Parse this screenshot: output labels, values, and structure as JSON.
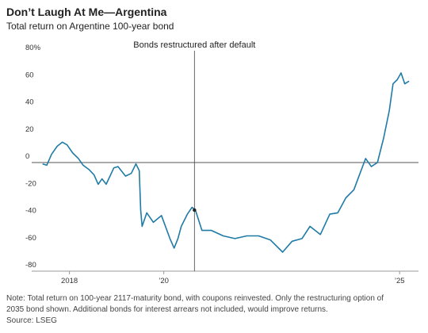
{
  "chart_data": {
    "type": "line",
    "title": "Don’t Laugh At Me—Argentina",
    "subtitle": "Total return on Argentine 100-year bond",
    "annotation": {
      "text": "Bonds restructured after default",
      "x": 2020.65
    },
    "note": [
      "Note: Total return on 100-year 2117-maturity bond, with coupons reinvested. Only the restructuring option of",
      "2035 bond shown. Additional bonds for interest arrears not included, would improve returns."
    ],
    "source": "Source: LSEG",
    "xlim": [
      2017.2,
      2025.4
    ],
    "xticks": [
      {
        "value": 2018,
        "label": "2018"
      },
      {
        "value": 2020,
        "label": "’20"
      },
      {
        "value": 2025,
        "label": "’25"
      }
    ],
    "ylim": [
      -80,
      80
    ],
    "yticks": [
      {
        "value": 80,
        "label": "80%"
      },
      60,
      40,
      20,
      0,
      -20,
      -40,
      -60,
      -80
    ],
    "series": [
      {
        "name": "Total return",
        "color": "#1f7ba6",
        "x": [
          2017.43,
          2017.52,
          2017.62,
          2017.74,
          2017.85,
          2017.95,
          2018.07,
          2018.19,
          2018.29,
          2018.41,
          2018.52,
          2018.61,
          2018.69,
          2018.78,
          2018.94,
          2019.03,
          2019.19,
          2019.31,
          2019.41,
          2019.48,
          2019.51,
          2019.54,
          2019.64,
          2019.78,
          2019.95,
          2020.13,
          2020.22,
          2020.3,
          2020.37,
          2020.5,
          2020.6,
          2020.67,
          2020.81,
          2021.01,
          2021.26,
          2021.51,
          2021.76,
          2022.01,
          2022.26,
          2022.52,
          2022.72,
          2022.93,
          2023.1,
          2023.32,
          2023.52,
          2023.69,
          2023.86,
          2024.03,
          2024.16,
          2024.28,
          2024.4,
          2024.53,
          2024.66,
          2024.78,
          2024.86,
          2024.95,
          2025.03,
          2025.11,
          2025.2
        ],
        "values": [
          -1,
          -2,
          6,
          12,
          15,
          13,
          7,
          3,
          -2,
          -5,
          -9,
          -16,
          -12,
          -16,
          -4,
          -3,
          -10,
          -8,
          -1,
          -6,
          -35,
          -47,
          -37,
          -44,
          -39,
          -56,
          -63,
          -56,
          -47,
          -38,
          -33,
          -35,
          -50,
          -50,
          -54,
          -56,
          -54,
          -54,
          -57,
          -66,
          -58,
          -56,
          -47,
          -53,
          -38,
          -37,
          -26,
          -20,
          -8,
          3,
          -3,
          0,
          18,
          38,
          58,
          61,
          66,
          58,
          60
        ]
      }
    ]
  }
}
